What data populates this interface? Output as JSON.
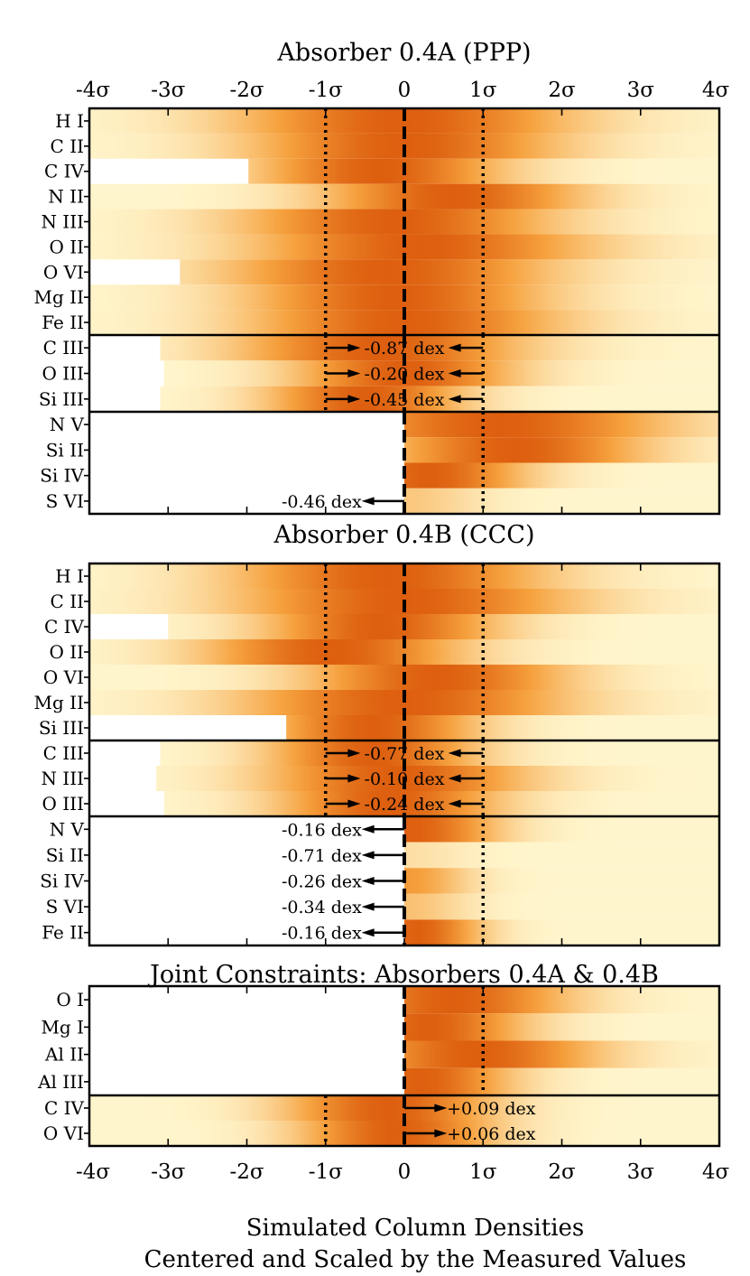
{
  "chart_data": {
    "type": "heatmap",
    "x_tick_labels": [
      "-4σ",
      "-3σ",
      "-2σ",
      "-1σ",
      "0",
      "1σ",
      "2σ",
      "3σ",
      "4σ"
    ],
    "xlim": [
      -4,
      4
    ],
    "xlabel_line1": "Simulated Column Densities",
    "xlabel_line2": "Centered and Scaled by the Measured Values",
    "colors": {
      "high": "#dd5f0f",
      "mid": "#f6a13d",
      "low": "#fff5cc",
      "white": "#ffffff"
    },
    "panels": [
      {
        "title": "Absorber 0.4A (PPP)",
        "groups": [
          {
            "kind": "measured",
            "rows": [
              {
                "label": "H I",
                "start": -4,
                "peak": 0,
                "width": 2.6
              },
              {
                "label": "C II",
                "start": -4,
                "peak": 0,
                "width": 2.4
              },
              {
                "label": "C IV",
                "start": -1.98,
                "peak": -0.3,
                "width": 1.9
              },
              {
                "label": "N II",
                "start": -4,
                "peak": 0.6,
                "width": 2.0
              },
              {
                "label": "N III",
                "start": -4,
                "peak": -0.1,
                "width": 2.4
              },
              {
                "label": "O II",
                "start": -4,
                "peak": 0.2,
                "width": 2.6
              },
              {
                "label": "O VI",
                "start": -2.85,
                "peak": -0.2,
                "width": 2.5
              },
              {
                "label": "Mg II",
                "start": -4,
                "peak": -0.1,
                "width": 2.3
              },
              {
                "label": "Fe II",
                "start": -4,
                "peak": 0.0,
                "width": 2.4
              }
            ]
          },
          {
            "kind": "offset",
            "rows": [
              {
                "label": "C III",
                "start": -3.1,
                "peak": -0.3,
                "width": 2.2,
                "annotation": "-0.87 dex"
              },
              {
                "label": "O III",
                "start": -3.05,
                "peak": 0.0,
                "width": 1.7,
                "annotation": "-0.20 dex"
              },
              {
                "label": "Si III",
                "start": -3.1,
                "peak": -0.5,
                "width": 1.5,
                "annotation": "-0.45 dex"
              }
            ]
          },
          {
            "kind": "limit",
            "rows": [
              {
                "label": "N V",
                "start": 0,
                "peak": 1.2,
                "width": 2.6
              },
              {
                "label": "Si II",
                "start": 0,
                "peak": 1.4,
                "width": 2.0
              },
              {
                "label": "Si IV",
                "start": 0,
                "peak": 0.3,
                "width": 1.5
              },
              {
                "label": "S VI",
                "start": 0,
                "peak": 0.0,
                "width": 1.2,
                "max": 0.3,
                "annotation": "-0.46 dex"
              }
            ]
          }
        ]
      },
      {
        "title": "Absorber 0.4B (CCC)",
        "groups": [
          {
            "kind": "measured",
            "rows": [
              {
                "label": "H I",
                "start": -4,
                "peak": -0.2,
                "width": 2.4
              },
              {
                "label": "C II",
                "start": -4,
                "peak": 0.0,
                "width": 2.6
              },
              {
                "label": "C IV",
                "start": -3.0,
                "peak": -0.3,
                "width": 1.8
              },
              {
                "label": "O II",
                "start": -4,
                "peak": -0.9,
                "width": 2.0
              },
              {
                "label": "O VI",
                "start": -4,
                "peak": 0.4,
                "width": 2.0
              },
              {
                "label": "Mg II",
                "start": -4,
                "peak": 0.0,
                "width": 2.5
              },
              {
                "label": "Si III",
                "start": -1.5,
                "peak": -0.4,
                "width": 1.6
              }
            ]
          },
          {
            "kind": "offset",
            "rows": [
              {
                "label": "C III",
                "start": -3.1,
                "peak": -0.4,
                "width": 1.6,
                "annotation": "-0.77 dex"
              },
              {
                "label": "N III",
                "start": -3.15,
                "peak": -0.1,
                "width": 2.0,
                "annotation": "-0.10 dex"
              },
              {
                "label": "O III",
                "start": -3.05,
                "peak": -0.2,
                "width": 1.7,
                "annotation": "-0.24 dex"
              }
            ]
          },
          {
            "kind": "limit",
            "rows": [
              {
                "label": "N V",
                "start": 0,
                "peak": 0.1,
                "width": 1.3,
                "annotation": "-0.16 dex"
              },
              {
                "label": "Si II",
                "start": 0,
                "peak": 0.0,
                "width": 1.0,
                "max": 0.15,
                "annotation": "-0.71 dex"
              },
              {
                "label": "Si IV",
                "start": 0,
                "peak": 0.0,
                "width": 1.0,
                "max": 0.6,
                "annotation": "-0.26 dex"
              },
              {
                "label": "S VI",
                "start": 0,
                "peak": 0.0,
                "width": 1.0,
                "max": 0.35,
                "annotation": "-0.34 dex"
              },
              {
                "label": "Fe II",
                "start": 0,
                "peak": 0.15,
                "width": 1.0,
                "annotation": "-0.16 dex"
              }
            ]
          }
        ]
      },
      {
        "title": "Joint Constraints: Absorbers 0.4A & 0.4B",
        "groups": [
          {
            "kind": "limit",
            "rows": [
              {
                "label": "O I",
                "start": 0,
                "peak": 0.6,
                "width": 1.8
              },
              {
                "label": "Mg I",
                "start": 0,
                "peak": 0.3,
                "width": 1.5
              },
              {
                "label": "Al II",
                "start": 0,
                "peak": 0.9,
                "width": 1.9
              },
              {
                "label": "Al III",
                "start": 0,
                "peak": 0.2,
                "width": 1.4
              }
            ]
          },
          {
            "kind": "upper",
            "rows": [
              {
                "label": "C IV",
                "start": -4,
                "peak": -0.2,
                "width": 1.6,
                "annotation": "+0.09 dex"
              },
              {
                "label": "O VI",
                "start": -4,
                "peak": -0.1,
                "width": 1.5,
                "annotation": "+0.06 dex"
              }
            ]
          }
        ]
      }
    ]
  }
}
